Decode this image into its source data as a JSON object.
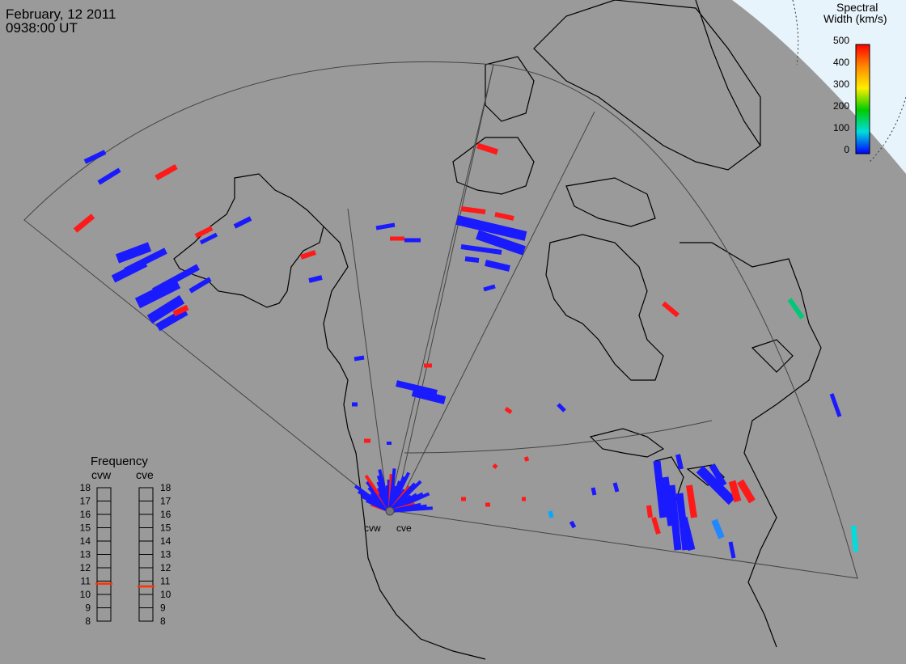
{
  "header": {
    "date": "February, 12 2011",
    "time": "0938:00 UT"
  },
  "colorbar": {
    "title_line1": "Spectral",
    "title_line2": "Width (km/s)",
    "ticks": [
      "500",
      "400",
      "300",
      "200",
      "100",
      "0"
    ],
    "colors": [
      "#ff0000",
      "#ff8800",
      "#ffff00",
      "#00cc00",
      "#00dddd",
      "#0000ff"
    ]
  },
  "radars": {
    "west": "cvw",
    "east": "cve"
  },
  "frequency": {
    "title": "Frequency",
    "labels": [
      "cvw",
      "cve"
    ],
    "ticks": [
      "18",
      "17",
      "16",
      "15",
      "14",
      "13",
      "12",
      "11",
      "10",
      "9",
      "8"
    ],
    "values_mhz": [
      10.8,
      10.6
    ],
    "marker_color": "#ff3300"
  },
  "colors": {
    "background": "#999999",
    "land_line": "#000000",
    "fov_line": "#555555",
    "low": "#1a1aff",
    "high": "#ff1a1a"
  }
}
